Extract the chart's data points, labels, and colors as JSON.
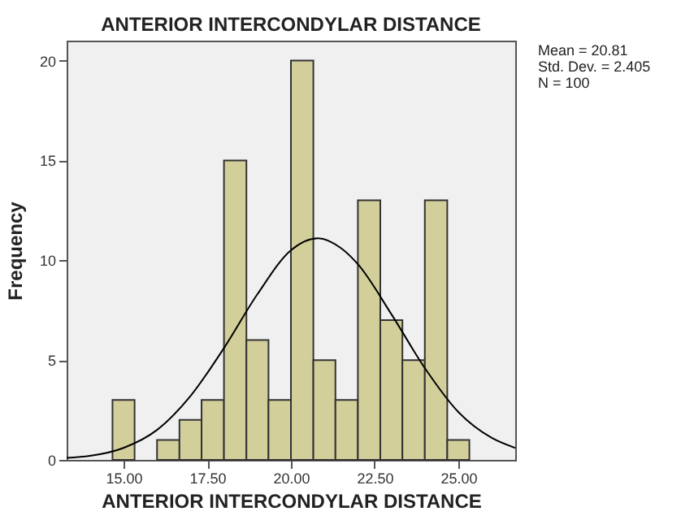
{
  "chart_data": {
    "type": "histogram",
    "title": "ANTERIOR INTERCONDYLAR DISTANCE",
    "xlabel": "ANTERIOR INTERCONDYLAR DISTANCE",
    "ylabel": "Frequency",
    "series": [
      {
        "color": "#d3cf9b",
        "bins": [
          14.67,
          15.33,
          16,
          16.67,
          17.33,
          18,
          18.67,
          19.33,
          20,
          20.67,
          21.33,
          22,
          22.67,
          23.33,
          24,
          24.67,
          25.33
        ],
        "values": [
          3,
          0,
          1,
          2,
          3,
          15,
          6,
          3,
          20,
          5,
          3,
          13,
          7,
          5,
          13,
          1
        ]
      },
      {
        "type": "line",
        "color": "#000000",
        "x": [
          13.3,
          14,
          15,
          16,
          17,
          18,
          19,
          20,
          20.81,
          21.5,
          22,
          23,
          24,
          25,
          26,
          26.7
        ],
        "values": [
          0.1,
          0.2,
          0.6,
          1.5,
          3.2,
          5.6,
          8.3,
          10.5,
          11.1,
          10.6,
          9.8,
          7.3,
          4.6,
          2.4,
          1.1,
          0.6
        ]
      }
    ],
    "xlim": [
      13.3,
      26.7
    ],
    "ylim": [
      0,
      21
    ],
    "xticks": [
      {
        "value": 15,
        "label": "15.00"
      },
      {
        "value": 17.5,
        "label": "17.50"
      },
      {
        "value": 20,
        "label": "20.00"
      },
      {
        "value": 22.5,
        "label": "22.50"
      },
      {
        "value": 25,
        "label": "25.00"
      }
    ],
    "yticks": [
      0,
      5,
      10,
      15,
      20
    ],
    "annotations": [
      "Mean = 20.81",
      "Std. Dev. = 2.405",
      "N = 100"
    ]
  }
}
